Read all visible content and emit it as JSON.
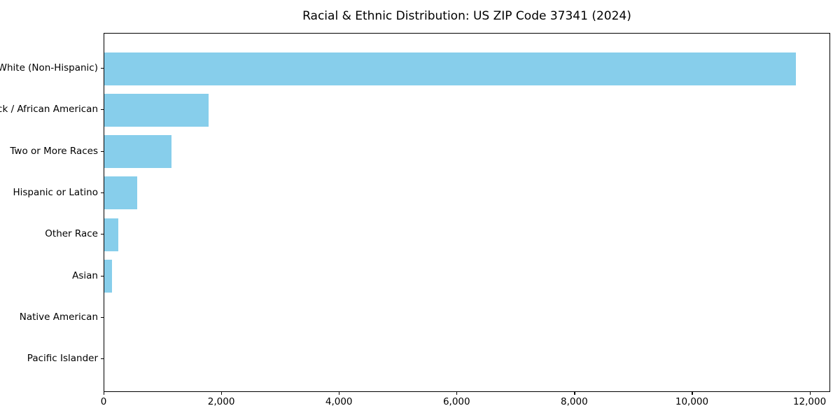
{
  "chart_data": {
    "type": "bar",
    "orientation": "horizontal",
    "title": "Racial & Ethnic Distribution: US ZIP Code 37341 (2024)",
    "categories": [
      "White (Non-Hispanic)",
      "Black / African American",
      "Two or More Races",
      "Hispanic or Latino",
      "Other Race",
      "Asian",
      "Native American",
      "Pacific Islander"
    ],
    "values": [
      11760,
      1770,
      1140,
      560,
      240,
      135,
      0,
      0
    ],
    "xlabel": "",
    "ylabel": "",
    "xlim": [
      0,
      12350
    ],
    "x_ticks": [
      0,
      2000,
      4000,
      6000,
      8000,
      10000,
      12000
    ],
    "x_tick_labels": [
      "0",
      "2,000",
      "4,000",
      "6,000",
      "8,000",
      "10,000",
      "12,000"
    ],
    "bar_color": "#87CEEB",
    "axis_color": "#000000",
    "text_color": "#000000",
    "grid": false,
    "legend": null
  }
}
